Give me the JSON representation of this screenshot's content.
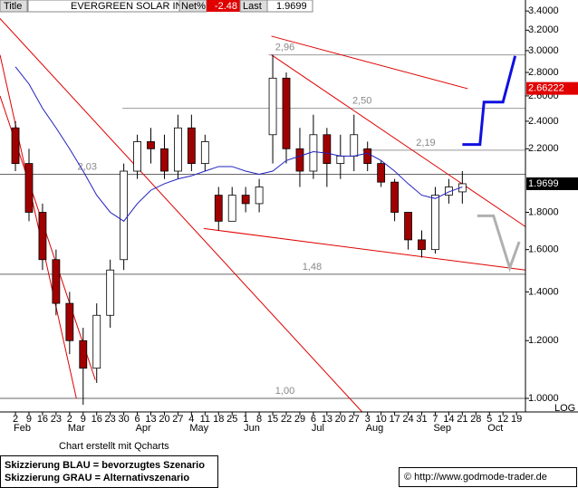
{
  "header": {
    "title_tab": "Title",
    "net_label": "Net%",
    "net": -2.48,
    "last_label": "Last"
  },
  "footer": {
    "credit": "Chart erstellt mit Qcharts",
    "legend_blue": "Skizzierung BLAU = bevorzugtes Szenario",
    "legend_gray": "Skizzierung GRAU = Alternativszenario",
    "source": "© http://www.godmode-trader.de"
  },
  "chart_data": {
    "type": "candlestick",
    "title": "EVERGREEN SOLAR INC",
    "log": true,
    "log_label": "LOG",
    "up_color": "#ffffff",
    "down_color": "#a00000",
    "categories": [
      "2",
      "9",
      "16",
      "23",
      "2",
      "9",
      "16",
      "23",
      "30",
      "6",
      "13",
      "20",
      "27",
      "4",
      "11",
      "18",
      "25",
      "1",
      "8",
      "15",
      "22",
      "29",
      "6",
      "13",
      "20",
      "27",
      "3",
      "10",
      "17",
      "24",
      "31",
      "7",
      "14",
      "21",
      "28",
      "5",
      "12",
      "19"
    ],
    "months": [
      {
        "label": "Feb",
        "at": 0
      },
      {
        "label": "Mar",
        "at": 4
      },
      {
        "label": "Apr",
        "at": 9
      },
      {
        "label": "May",
        "at": 13
      },
      {
        "label": "Jun",
        "at": 17
      },
      {
        "label": "Jul",
        "at": 22
      },
      {
        "label": "Aug",
        "at": 26
      },
      {
        "label": "Sep",
        "at": 31
      },
      {
        "label": "Oct",
        "at": 35
      }
    ],
    "xlim": [
      -1.14,
      37.66
    ],
    "ylim": [
      0.958,
      3.52
    ],
    "yticks": [
      {
        "value": 3.4,
        "label": "3.4000"
      },
      {
        "value": 3.2,
        "label": "3.2000"
      },
      {
        "value": 3.0,
        "label": "3.0000"
      },
      {
        "value": 2.8,
        "label": "2.8000"
      },
      {
        "value": 2.6,
        "label": "2.6000"
      },
      {
        "value": 2.4,
        "label": "2.4000"
      },
      {
        "value": 2.2,
        "label": "2.2000"
      },
      {
        "value": 1.8,
        "label": "1.8000"
      },
      {
        "value": 1.6,
        "label": "1.6000"
      },
      {
        "value": 1.4,
        "label": "1.4000"
      },
      {
        "value": 1.2,
        "label": "1.2000"
      },
      {
        "value": 1.0,
        "label": "1.0000"
      }
    ],
    "candles": [
      [
        2.35,
        2.4,
        2.05,
        2.1
      ],
      [
        2.1,
        2.2,
        1.75,
        1.8
      ],
      [
        1.8,
        1.85,
        1.5,
        1.55
      ],
      [
        1.55,
        1.6,
        1.3,
        1.35
      ],
      [
        1.35,
        1.4,
        1.15,
        1.2
      ],
      [
        1.2,
        1.25,
        0.98,
        1.1
      ],
      [
        1.1,
        1.35,
        1.05,
        1.3
      ],
      [
        1.3,
        1.55,
        1.25,
        1.5
      ],
      [
        1.55,
        2.1,
        1.5,
        2.05
      ],
      [
        2.05,
        2.3,
        2.0,
        2.25
      ],
      [
        2.25,
        2.35,
        2.1,
        2.2
      ],
      [
        2.2,
        2.3,
        2.0,
        2.05
      ],
      [
        2.05,
        2.45,
        2.0,
        2.35
      ],
      [
        2.35,
        2.45,
        2.05,
        2.1
      ],
      [
        2.1,
        2.3,
        2.05,
        2.25
      ],
      [
        1.9,
        1.95,
        1.7,
        1.75
      ],
      [
        1.75,
        1.95,
        1.75,
        1.9
      ],
      [
        1.9,
        1.95,
        1.8,
        1.85
      ],
      [
        1.85,
        2.0,
        1.8,
        1.95
      ],
      [
        2.3,
        2.96,
        2.1,
        2.75
      ],
      [
        2.75,
        2.8,
        2.1,
        2.2
      ],
      [
        2.2,
        2.35,
        1.95,
        2.05
      ],
      [
        2.05,
        2.45,
        2.0,
        2.3
      ],
      [
        2.3,
        2.35,
        1.95,
        2.1
      ],
      [
        2.1,
        2.3,
        2.0,
        2.15
      ],
      [
        2.15,
        2.45,
        2.05,
        2.3
      ],
      [
        2.2,
        2.25,
        2.05,
        2.1
      ],
      [
        2.1,
        2.12,
        1.95,
        1.98
      ],
      [
        1.98,
        2.0,
        1.75,
        1.8
      ],
      [
        1.8,
        1.8,
        1.6,
        1.65
      ],
      [
        1.65,
        1.7,
        1.56,
        1.6
      ],
      [
        1.6,
        1.95,
        1.58,
        1.9
      ],
      [
        1.9,
        2.0,
        1.85,
        1.95
      ],
      [
        1.92,
        2.05,
        1.85,
        1.97
      ]
    ],
    "ma": {
      "color": "#2020c0",
      "values": [
        2.85,
        2.7,
        2.5,
        2.35,
        2.2,
        2.05,
        1.9,
        1.8,
        1.75,
        1.85,
        1.93,
        1.97,
        2.0,
        2.02,
        2.05,
        2.08,
        2.08,
        2.05,
        2.03,
        2.05,
        2.12,
        2.15,
        2.18,
        2.17,
        2.15,
        2.15,
        2.17,
        2.12,
        2.05,
        1.97,
        1.9,
        1.88,
        1.92,
        1.95
      ]
    },
    "levels": [
      {
        "value": 2.96,
        "label": "2,96",
        "from": 18.7,
        "label_at": 19.9
      },
      {
        "value": 2.5,
        "label": "2,50",
        "from": 7.9,
        "label_at": 25.6
      },
      {
        "value": 2.19,
        "label": "2,19",
        "from": 25.6,
        "label_at": 30.3
      },
      {
        "value": 2.03,
        "label": "2,03",
        "label_at": 5.3,
        "dark": true
      },
      {
        "value": 1.48,
        "label": "1,48",
        "label_at": 21.9,
        "dark": true
      },
      {
        "value": 1.0,
        "label": "1,00",
        "label_at": 19.9,
        "dark": true
      }
    ],
    "trend_color": "#e00000",
    "trendlines": [
      {
        "x": [
          -1.14,
          25.6
        ],
        "y": [
          3.32,
          0.958
        ]
      },
      {
        "x": [
          -1.14,
          4.5
        ],
        "y": [
          2.96,
          1.0
        ]
      },
      {
        "x": [
          -1.14,
          5.9
        ],
        "y": [
          2.6,
          1.06
        ]
      },
      {
        "x": [
          18.9,
          33.4
        ],
        "y": [
          3.14,
          2.66
        ]
      },
      {
        "x": [
          18.9,
          37.66
        ],
        "y": [
          2.96,
          1.72
        ]
      },
      {
        "x": [
          13.9,
          37.66
        ],
        "y": [
          1.71,
          1.5
        ]
      }
    ],
    "scenarios": [
      {
        "color": "#1010e0",
        "x": [
          33,
          34.3,
          34.6,
          36,
          36.9
        ],
        "y": [
          2.23,
          2.23,
          2.55,
          2.55,
          2.95
        ]
      },
      {
        "color": "#b0b0b0",
        "x": [
          34.1,
          35.3,
          36.5,
          37.2
        ],
        "y": [
          1.78,
          1.78,
          1.51,
          1.64
        ]
      }
    ],
    "marker_price": 2.66222,
    "last": 1.9699
  }
}
